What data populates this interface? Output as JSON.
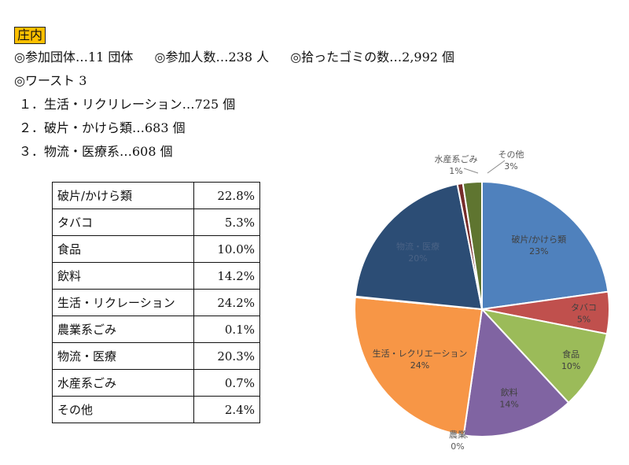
{
  "header": {
    "badge": "庄内",
    "summary": {
      "groups": "◎参加団体…11 団体",
      "people": "◎参加人数…238 人",
      "trash": "◎拾ったゴミの数…2,992 個"
    },
    "worst_title": "◎ワースト 3",
    "worst": [
      "１．生活・リクリレーション…725 個",
      "２．破片・かけら類…683 個",
      "３．物流・医療系…608 個"
    ]
  },
  "table": {
    "rows": [
      {
        "name": "破片/かけら類",
        "pct": "22.8%"
      },
      {
        "name": "タバコ",
        "pct": "5.3%"
      },
      {
        "name": "食品",
        "pct": "10.0%"
      },
      {
        "name": "飲料",
        "pct": "14.2%"
      },
      {
        "name": "生活・リクレーション",
        "pct": "24.2%"
      },
      {
        "name": "農業系ごみ",
        "pct": "0.1%"
      },
      {
        "name": "物流・医療",
        "pct": "20.3%"
      },
      {
        "name": "水産系ごみ",
        "pct": "0.7%"
      },
      {
        "name": "その他",
        "pct": "2.4%"
      }
    ]
  },
  "chart_data": {
    "type": "pie",
    "start_angle_deg": 0,
    "direction": "clockwise",
    "slices": [
      {
        "label": "破片/かけら類",
        "pct_label": "23%",
        "value": 22.8,
        "color": "#4f81bd"
      },
      {
        "label": "タバコ",
        "pct_label": "5%",
        "value": 5.3,
        "color": "#c0504d"
      },
      {
        "label": "食品",
        "pct_label": "10%",
        "value": 10.0,
        "color": "#9bbb59"
      },
      {
        "label": "飲料",
        "pct_label": "14%",
        "value": 14.2,
        "color": "#8064a2"
      },
      {
        "label": "生活・レクリエーション",
        "pct_label": "24%",
        "value": 24.2,
        "color": "#f79646"
      },
      {
        "label": "農業",
        "pct_label": "0%",
        "value": 0.1,
        "color": "#4bacc6"
      },
      {
        "label": "物流・医療",
        "pct_label": "20%",
        "value": 20.3,
        "color": "#2c4d75"
      },
      {
        "label": "水産系ごみ",
        "pct_label": "1%",
        "value": 0.7,
        "color": "#772c2a"
      },
      {
        "label": "その他",
        "pct_label": "3%",
        "value": 2.4,
        "color": "#5f7530"
      }
    ]
  }
}
